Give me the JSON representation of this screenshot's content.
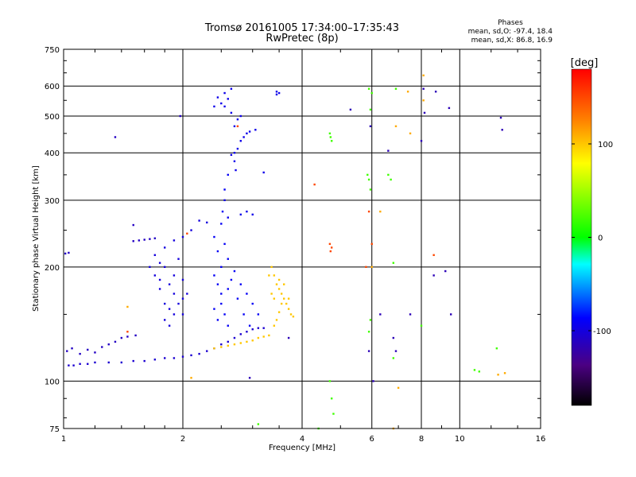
{
  "chart_data": {
    "type": "scatter",
    "title": "Tromsø 20161005 17:34:00–17:35:43",
    "subtitle": "RwPretec (8p)",
    "stats": {
      "heading": "Phases",
      "line_o": "mean, sd,O: -97.4, 18.4",
      "line_x": "mean, sd,X:  86.8, 16.9"
    },
    "xlabel": "Frequency [MHz]",
    "ylabel": "Stationary phase Virtual Height [km]",
    "x_scale": "log",
    "y_scale": "log",
    "xlim": [
      1,
      16
    ],
    "ylim": [
      75,
      750
    ],
    "x_ticks": [
      1,
      2,
      4,
      6,
      8,
      10,
      16
    ],
    "y_ticks": [
      75,
      100,
      200,
      300,
      400,
      500,
      600,
      750
    ],
    "grid": true,
    "colorbar": {
      "label": "[deg]",
      "range": [
        -180,
        180
      ],
      "ticks": [
        100,
        0,
        -100
      ]
    },
    "series": [
      {
        "phase": -105,
        "points": [
          [
            1.03,
            110
          ],
          [
            1.06,
            110
          ],
          [
            1.1,
            111
          ],
          [
            1.15,
            111
          ],
          [
            1.2,
            112
          ],
          [
            1.3,
            112
          ],
          [
            1.4,
            112
          ],
          [
            1.5,
            113
          ],
          [
            1.6,
            113
          ],
          [
            1.7,
            114
          ],
          [
            1.8,
            115
          ],
          [
            1.9,
            115
          ],
          [
            2.0,
            116
          ],
          [
            2.1,
            117
          ],
          [
            2.2,
            118
          ],
          [
            2.3,
            120
          ],
          [
            2.4,
            122
          ],
          [
            2.5,
            125
          ],
          [
            2.6,
            127
          ],
          [
            2.7,
            130
          ],
          [
            2.8,
            133
          ],
          [
            2.9,
            135
          ],
          [
            3.0,
            137
          ],
          [
            3.1,
            138
          ],
          [
            3.2,
            138
          ]
        ]
      },
      {
        "phase": -110,
        "points": [
          [
            1.02,
            120
          ],
          [
            1.05,
            122
          ],
          [
            1.1,
            118
          ],
          [
            1.15,
            121
          ],
          [
            1.2,
            119
          ],
          [
            1.25,
            123
          ],
          [
            1.3,
            125
          ],
          [
            1.35,
            127
          ],
          [
            1.4,
            130
          ],
          [
            1.45,
            131
          ],
          [
            1.01,
            217
          ],
          [
            1.03,
            218
          ],
          [
            1.5,
            234
          ],
          [
            1.55,
            235
          ],
          [
            1.6,
            236
          ],
          [
            1.65,
            237
          ],
          [
            1.7,
            238
          ],
          [
            1.97,
            500
          ],
          [
            1.35,
            440
          ],
          [
            1.5,
            258
          ],
          [
            1.52,
            132
          ]
        ]
      },
      {
        "phase": -100,
        "points": [
          [
            1.8,
            200
          ],
          [
            1.85,
            180
          ],
          [
            1.9,
            170
          ],
          [
            1.95,
            160
          ],
          [
            2.0,
            150
          ],
          [
            1.75,
            175
          ],
          [
            1.8,
            160
          ],
          [
            1.85,
            140
          ],
          [
            1.9,
            190
          ],
          [
            2.0,
            185
          ],
          [
            2.05,
            170
          ],
          [
            1.7,
            215
          ],
          [
            1.75,
            205
          ],
          [
            1.8,
            225
          ],
          [
            1.9,
            235
          ],
          [
            2.0,
            240
          ],
          [
            2.1,
            250
          ],
          [
            2.2,
            265
          ],
          [
            2.3,
            262
          ],
          [
            1.65,
            200
          ],
          [
            1.7,
            190
          ],
          [
            1.95,
            210
          ],
          [
            1.9,
            150
          ],
          [
            2.0,
            165
          ],
          [
            1.8,
            145
          ],
          [
            1.85,
            155
          ],
          [
            1.75,
            185
          ]
        ]
      },
      {
        "phase": -90,
        "points": [
          [
            2.4,
            240
          ],
          [
            2.45,
            220
          ],
          [
            2.5,
            200
          ],
          [
            2.45,
            180
          ],
          [
            2.5,
            160
          ],
          [
            2.55,
            150
          ],
          [
            2.6,
            140
          ],
          [
            2.5,
            170
          ],
          [
            2.4,
            190
          ],
          [
            2.6,
            210
          ],
          [
            2.7,
            195
          ],
          [
            2.8,
            180
          ],
          [
            2.9,
            170
          ],
          [
            3.0,
            160
          ],
          [
            3.1,
            150
          ],
          [
            2.75,
            165
          ],
          [
            2.85,
            150
          ],
          [
            2.95,
            140
          ],
          [
            2.6,
            175
          ],
          [
            2.65,
            185
          ],
          [
            2.4,
            155
          ],
          [
            2.45,
            145
          ],
          [
            2.55,
            230
          ],
          [
            2.5,
            260
          ],
          [
            2.52,
            280
          ],
          [
            2.55,
            320
          ],
          [
            2.6,
            350
          ]
        ]
      },
      {
        "phase": -95,
        "points": [
          [
            2.65,
            395
          ],
          [
            2.7,
            400
          ],
          [
            2.75,
            410
          ],
          [
            2.8,
            430
          ],
          [
            2.85,
            440
          ],
          [
            2.9,
            450
          ],
          [
            2.95,
            455
          ],
          [
            3.05,
            460
          ],
          [
            2.7,
            470
          ],
          [
            2.75,
            490
          ],
          [
            2.8,
            500
          ],
          [
            2.65,
            510
          ],
          [
            2.55,
            530
          ],
          [
            2.5,
            540
          ],
          [
            2.6,
            555
          ],
          [
            2.55,
            575
          ],
          [
            2.65,
            590
          ],
          [
            2.4,
            530
          ],
          [
            2.45,
            560
          ],
          [
            2.7,
            380
          ],
          [
            2.72,
            360
          ],
          [
            2.55,
            300
          ],
          [
            2.6,
            270
          ],
          [
            2.8,
            275
          ],
          [
            2.9,
            280
          ],
          [
            3.0,
            275
          ],
          [
            3.2,
            355
          ],
          [
            3.45,
            570
          ],
          [
            3.5,
            575
          ],
          [
            3.45,
            580
          ]
        ]
      },
      {
        "phase": 100,
        "points": [
          [
            2.4,
            122
          ],
          [
            2.5,
            123
          ],
          [
            2.6,
            124
          ],
          [
            2.7,
            125
          ],
          [
            2.8,
            126
          ],
          [
            2.9,
            127
          ],
          [
            3.0,
            128
          ],
          [
            3.1,
            130
          ],
          [
            3.2,
            131
          ],
          [
            3.3,
            132
          ],
          [
            3.4,
            140
          ],
          [
            3.45,
            145
          ],
          [
            3.5,
            152
          ],
          [
            3.35,
            200
          ],
          [
            3.4,
            190
          ],
          [
            3.45,
            180
          ],
          [
            3.5,
            175
          ],
          [
            3.55,
            170
          ],
          [
            3.6,
            165
          ],
          [
            3.65,
            160
          ],
          [
            3.7,
            155
          ],
          [
            3.75,
            150
          ],
          [
            3.8,
            148
          ],
          [
            3.35,
            170
          ],
          [
            3.4,
            165
          ],
          [
            3.5,
            185
          ],
          [
            3.6,
            180
          ],
          [
            3.7,
            165
          ],
          [
            3.3,
            190
          ],
          [
            3.55,
            160
          ]
        ]
      },
      {
        "phase": 150,
        "points": [
          [
            4.7,
            230
          ],
          [
            4.72,
            220
          ],
          [
            4.75,
            225
          ],
          [
            5.9,
            280
          ],
          [
            6.0,
            230
          ],
          [
            4.3,
            330
          ],
          [
            5.8,
            200
          ],
          [
            1.45,
            135
          ],
          [
            2.05,
            245
          ],
          [
            2.75,
            470
          ],
          [
            8.6,
            215
          ]
        ]
      },
      {
        "phase": 20,
        "points": [
          [
            4.7,
            450
          ],
          [
            4.72,
            440
          ],
          [
            4.75,
            430
          ],
          [
            5.9,
            590
          ],
          [
            6.0,
            575
          ],
          [
            5.95,
            520
          ],
          [
            6.6,
            350
          ],
          [
            6.7,
            340
          ],
          [
            5.85,
            350
          ],
          [
            5.9,
            340
          ],
          [
            5.95,
            320
          ],
          [
            6.8,
            205
          ],
          [
            5.9,
            135
          ],
          [
            6.8,
            115
          ],
          [
            4.75,
            90
          ],
          [
            4.8,
            82
          ],
          [
            4.7,
            100
          ],
          [
            10.9,
            107
          ],
          [
            11.2,
            106
          ],
          [
            3.1,
            77
          ],
          [
            8.0,
            140
          ],
          [
            12.4,
            122
          ],
          [
            6.9,
            590
          ],
          [
            5.95,
            145
          ],
          [
            4.4,
            75
          ]
        ]
      },
      {
        "phase": -115,
        "points": [
          [
            6.05,
            100
          ],
          [
            5.9,
            120
          ],
          [
            5.95,
            470
          ],
          [
            6.3,
            150
          ],
          [
            6.8,
            130
          ],
          [
            7.5,
            150
          ],
          [
            8.6,
            190
          ],
          [
            9.2,
            195
          ],
          [
            9.5,
            150
          ],
          [
            8.1,
            590
          ],
          [
            8.15,
            510
          ],
          [
            8.0,
            430
          ],
          [
            12.7,
            495
          ],
          [
            12.8,
            460
          ],
          [
            5.3,
            520
          ],
          [
            6.6,
            405
          ],
          [
            9.4,
            525
          ],
          [
            8.7,
            580
          ],
          [
            3.7,
            130
          ],
          [
            2.95,
            102
          ],
          [
            6.9,
            120
          ]
        ]
      },
      {
        "phase": 110,
        "points": [
          [
            6.3,
            280
          ],
          [
            6.9,
            470
          ],
          [
            7.5,
            450
          ],
          [
            7.4,
            580
          ],
          [
            8.1,
            550
          ],
          [
            8.1,
            640
          ],
          [
            7.0,
            96
          ],
          [
            6.8,
            75
          ],
          [
            12.5,
            104
          ],
          [
            13.0,
            105
          ],
          [
            2.1,
            102
          ],
          [
            6.0,
            200
          ],
          [
            1.45,
            157
          ]
        ]
      }
    ]
  }
}
